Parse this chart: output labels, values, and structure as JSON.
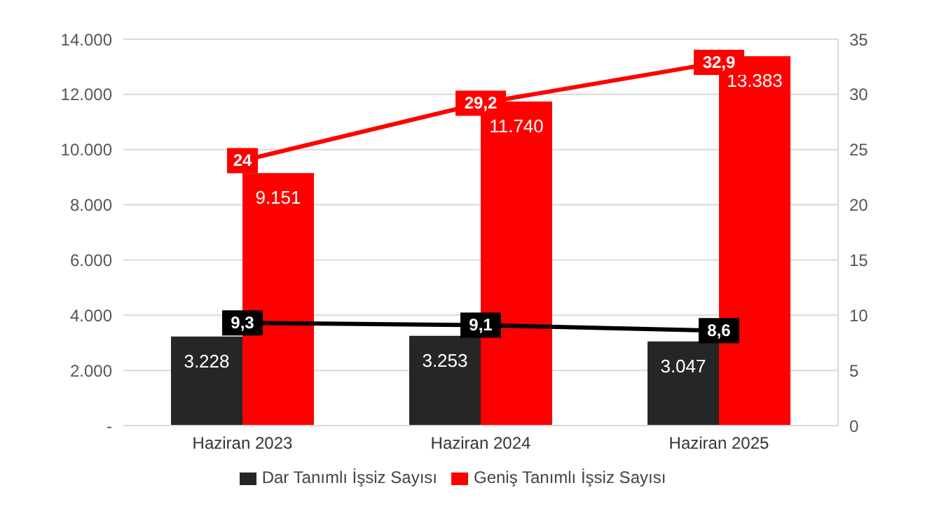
{
  "chart_data": {
    "type": "bar",
    "categories": [
      "Haziran 2023",
      "Haziran 2024",
      "Haziran 2025"
    ],
    "series": [
      {
        "name": "Dar Tanımlı İşsiz Sayısı",
        "color": "#262626",
        "values": [
          3228,
          3253,
          3047
        ],
        "value_labels": [
          "3.228",
          "3.253",
          "3.047"
        ]
      },
      {
        "name": "Geniş Tanımlı İşsiz Sayısı",
        "color": "#ff0000",
        "values": [
          9151,
          11740,
          13383
        ],
        "value_labels": [
          "9.151",
          "11.740",
          "13.383"
        ]
      },
      {
        "type": "line",
        "axis": "y2",
        "color": "#000000",
        "values": [
          9.3,
          9.1,
          8.6
        ],
        "value_labels": [
          "9,3",
          "9,1",
          "8,6"
        ]
      },
      {
        "type": "line",
        "axis": "y2",
        "color": "#ff0000",
        "values": [
          24,
          29.2,
          32.9
        ],
        "value_labels": [
          "24",
          "29,2",
          "32,9"
        ]
      }
    ],
    "ylim": [
      0,
      14000
    ],
    "yticks": [
      {
        "value": 0,
        "label": "-"
      },
      {
        "value": 2000,
        "label": "2.000"
      },
      {
        "value": 4000,
        "label": "4.000"
      },
      {
        "value": 6000,
        "label": "6.000"
      },
      {
        "value": 8000,
        "label": "8.000"
      },
      {
        "value": 10000,
        "label": "10.000"
      },
      {
        "value": 12000,
        "label": "12.000"
      },
      {
        "value": 14000,
        "label": "14.000"
      }
    ],
    "y2lim": [
      0,
      35
    ],
    "y2ticks": [
      0,
      5,
      10,
      15,
      20,
      25,
      30,
      35
    ],
    "grid": "y",
    "legend": "bottom",
    "marker": "square",
    "line_style": "solid"
  }
}
